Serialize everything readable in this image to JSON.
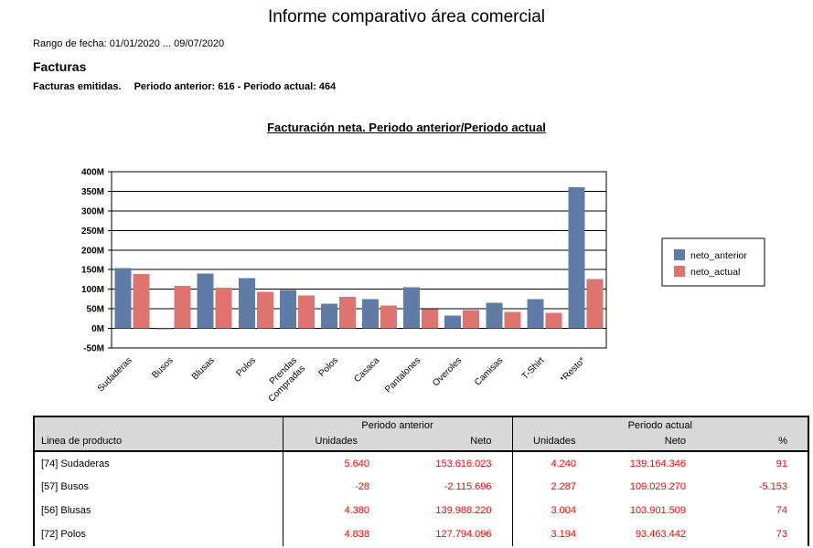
{
  "report": {
    "title": "Informe comparativo área comercial",
    "date_range": "Rango de fecha: 01/01/2020 ... 09/07/2020",
    "section_title": "Facturas",
    "summary_prefix": "Facturas emitidas.",
    "summary_detail": "Periodo anterior: 616 - Periodo actual: 464"
  },
  "chart_data": {
    "type": "bar",
    "title": "Facturación neta. Periodo anterior/Periodo actual",
    "categories": [
      "Sudaderas",
      "Busos",
      "Blusas",
      "Polos",
      "Prendas\nCompradas",
      "Polos",
      "Casaca",
      "Pantalones",
      "Overoles",
      "Camisas",
      "T-Shirt",
      "*Resto*"
    ],
    "series": [
      {
        "name": "neto_anterior",
        "color": "#5f7ca7",
        "values_millions": [
          153.6,
          -2.1,
          140.0,
          127.8,
          98,
          63,
          75,
          105,
          33,
          65,
          75,
          360
        ]
      },
      {
        "name": "neto_actual",
        "color": "#de7370",
        "values_millions": [
          139.2,
          109.0,
          103.9,
          93.5,
          84,
          80,
          58,
          49,
          47,
          42,
          40,
          126
        ]
      }
    ],
    "ylim": [
      -50,
      400
    ],
    "ytick_step": 50,
    "ytick_suffix": "M",
    "xlabel": "",
    "ylabel": "",
    "grid": true,
    "legend_position": "right"
  },
  "table": {
    "product_header": "Linea de producto",
    "groups": [
      {
        "label": "Periodo anterior",
        "columns": [
          "Unidades",
          "Neto"
        ]
      },
      {
        "label": "Periodo actual",
        "columns": [
          "Unidades",
          "Neto",
          "%"
        ]
      }
    ],
    "rows": [
      [
        "[74] Sudaderas",
        "5.640",
        "153.616.023",
        "4.240",
        "139.164.346",
        "91"
      ],
      [
        "[57] Busos",
        "-28",
        "-2.115.696",
        "2.287",
        "109.029.270",
        "-5.153"
      ],
      [
        "[56] Blusas",
        "4.380",
        "139.988.220",
        "3.004",
        "103.901.509",
        "74"
      ],
      [
        "[72] Polos",
        "4.838",
        "127.794.096",
        "3.194",
        "93.463.442",
        "73"
      ]
    ],
    "value_color": "#ff0000",
    "header_bg": "#d8d8d8"
  }
}
